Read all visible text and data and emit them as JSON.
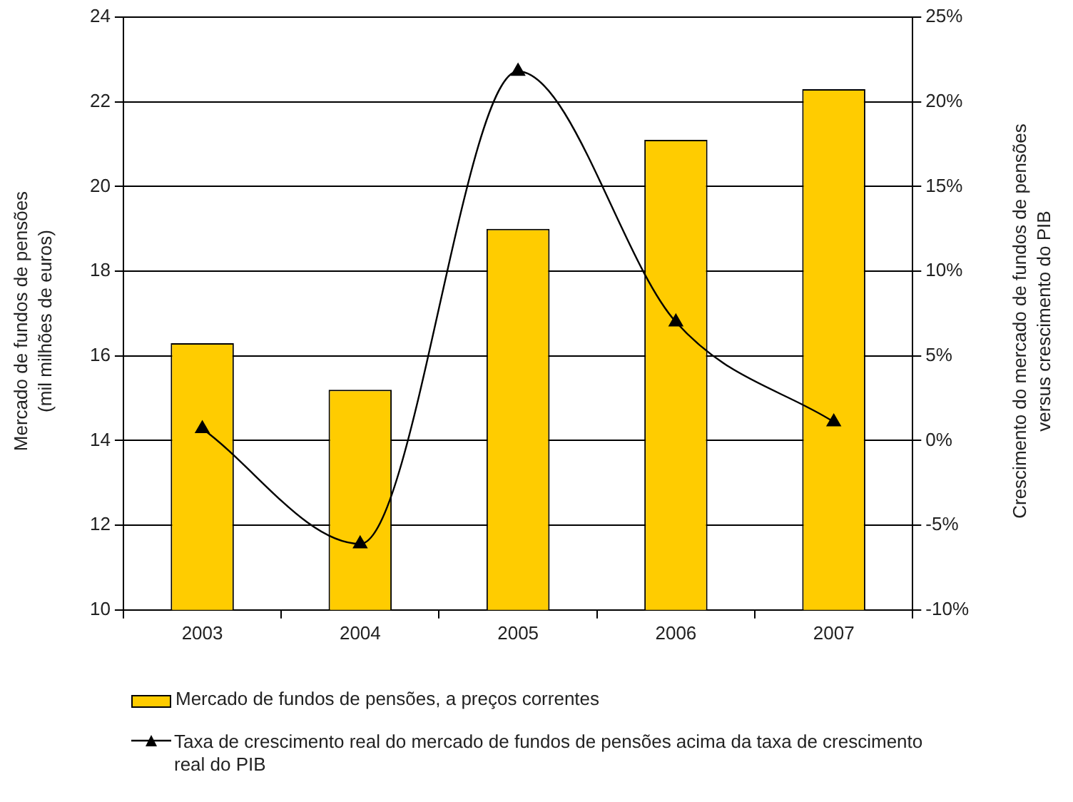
{
  "chart_data": {
    "type": "bar",
    "categories": [
      "2003",
      "2004",
      "2005",
      "2006",
      "2007"
    ],
    "series": [
      {
        "name": "Mercado de fundos de pensões, a preços correntes",
        "color": "#ffcc00",
        "values": [
          16.3,
          15.2,
          19.0,
          21.1,
          22.3
        ]
      },
      {
        "name": "Taxa de crescimento real do mercado de fundos de pensões acima da taxa de crescimento real do PIB",
        "type": "line",
        "axis": "y2",
        "color": "#000000",
        "marker": "triangle",
        "values": [
          0.7,
          -6.1,
          21.8,
          7.0,
          1.1
        ]
      }
    ],
    "ylabel": "Mercado de fundos de pensões (mil milhões de euros)",
    "y2label": "Crescimento do mercado de fundos de pensões versus crescimento do PIB",
    "ylim": [
      10,
      24
    ],
    "yticks": [
      10,
      12,
      14,
      16,
      18,
      20,
      22,
      24
    ],
    "y2lim": [
      -10,
      25
    ],
    "y2ticks": [
      {
        "value": -10,
        "label": "-10%"
      },
      {
        "value": -5,
        "label": "-5%"
      },
      {
        "value": 0,
        "label": "0%"
      },
      {
        "value": 5,
        "label": "5%"
      },
      {
        "value": 10,
        "label": "10%"
      },
      {
        "value": 15,
        "label": "15%"
      },
      {
        "value": 20,
        "label": "20%"
      },
      {
        "value": 25,
        "label": "25%"
      }
    ],
    "grid": "y",
    "legend": "bottom"
  }
}
